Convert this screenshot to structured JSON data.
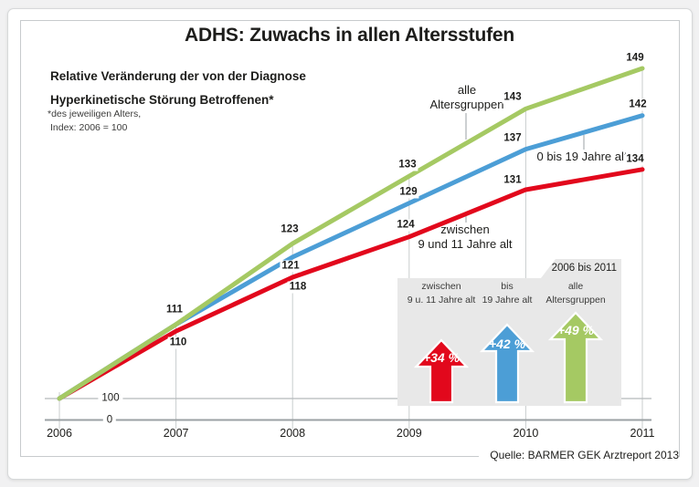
{
  "page": {
    "subtitle_line1": "Relative Veränderung der von der Diagnose",
    "subtitle_line2": "Hyperkinetische Störung Betroffenen*",
    "footnote_line1": "*des jeweiligen Alters,",
    "footnote_line2": "Index: 2006 = 100",
    "source": "Quelle: BARMER GEK Arztreport 2013"
  },
  "chart_data": {
    "type": "line",
    "title": "ADHS: Zuwachs in allen Altersstufen",
    "x": [
      2006,
      2007,
      2008,
      2009,
      2010,
      2011
    ],
    "series": [
      {
        "name": "alle Altersgruppen",
        "color": "#a5c963",
        "values": [
          100,
          111,
          123,
          133,
          143,
          149
        ]
      },
      {
        "name": "0 bis 19 Jahre alt",
        "color": "#4c9ed6",
        "values": [
          100,
          111,
          121,
          129,
          137,
          142
        ]
      },
      {
        "name": "zwischen 9 und 11 Jahre alt",
        "color": "#e2081c",
        "values": [
          100,
          110,
          118,
          124,
          131,
          134
        ]
      }
    ],
    "index_baseline_label": "100",
    "axis_zero_label": "0",
    "ylim": [
      100,
      152
    ],
    "grid": "vertical-per-year",
    "legend_position": "inline-annotations"
  },
  "annotations": {
    "green_label_line1": "alle",
    "green_label_line2": "Altersgruppen",
    "blue_label": "0 bis 19 Jahre alt",
    "red_label_line1": "zwischen",
    "red_label_line2": "9 und 11 Jahre alt"
  },
  "summary_box": {
    "tab": "2006 bis 2011",
    "background": "#e8e8e8",
    "items": [
      {
        "label_line1": "zwischen",
        "label_line2": "9 u. 11 Jahre alt",
        "value": "+34 %",
        "color": "#e2081c"
      },
      {
        "label_line1": "bis",
        "label_line2": "19 Jahre alt",
        "value": "+42 %",
        "color": "#4c9ed6"
      },
      {
        "label_line1": "alle",
        "label_line2": "Altersgruppen",
        "value": "+49 %",
        "color": "#a5c963"
      }
    ]
  }
}
